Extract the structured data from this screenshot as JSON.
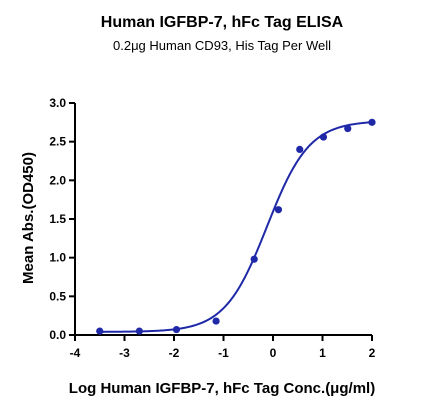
{
  "chart_data": {
    "type": "scatter",
    "title": "Human IGFBP-7, hFc Tag ELISA",
    "subtitle": "0.2μg Human CD93, His Tag Per Well",
    "xlabel": "Log Human IGFBP-7, hFc Tag Conc.(μg/ml)",
    "ylabel": "Mean Abs.(OD450)",
    "xlim": [
      -4,
      2
    ],
    "ylim": [
      0,
      3
    ],
    "xticks": [
      -4,
      -3,
      -2,
      -1,
      0,
      1,
      2
    ],
    "xtick_labels": [
      "-4",
      "-3",
      "-2",
      "-1",
      "0",
      "1",
      "2"
    ],
    "yticks": [
      0,
      0.5,
      1,
      1.5,
      2,
      2.5,
      3
    ],
    "ytick_labels": [
      "0.0",
      "0.5",
      "1.0",
      "1.5",
      "2.0",
      "2.5",
      "3.0"
    ],
    "grid": false,
    "series": [
      {
        "x": [
          -3.5,
          -2.7,
          -1.95,
          -1.15,
          -0.38,
          0.11,
          0.54,
          1.02,
          1.51,
          2.0
        ],
        "y": [
          0.05,
          0.05,
          0.07,
          0.18,
          0.98,
          1.62,
          2.4,
          2.56,
          2.67,
          2.75
        ],
        "color": "#1f29a8",
        "fit": "sigmoid"
      }
    ]
  }
}
